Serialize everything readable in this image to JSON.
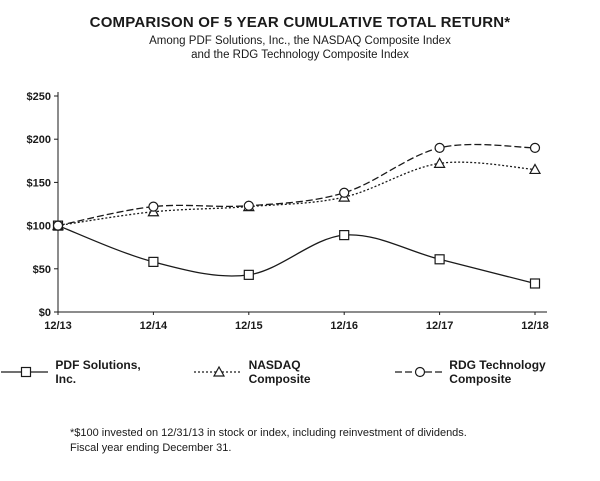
{
  "page": {
    "title": "COMPARISON OF 5 YEAR CUMULATIVE TOTAL RETURN*",
    "subtitle_line1": "Among PDF Solutions, Inc., the NASDAQ Composite Index",
    "subtitle_line2": "and the RDG Technology Composite Index",
    "footnote_line1": "*$100 invested on 12/31/13 in stock or index, including reinvestment of dividends.",
    "footnote_line2": "Fiscal year ending December 31."
  },
  "chart_data": {
    "type": "line",
    "title": "COMPARISON OF 5 YEAR CUMULATIVE TOTAL RETURN*",
    "x": [
      "12/13",
      "12/14",
      "12/15",
      "12/16",
      "12/17",
      "12/18"
    ],
    "series": [
      {
        "name": "PDF Solutions, Inc.",
        "marker": "square",
        "dash": "solid",
        "values": [
          100,
          58,
          43,
          89,
          61,
          33
        ]
      },
      {
        "name": "NASDAQ Composite",
        "marker": "triangle",
        "dash": "dotted",
        "values": [
          100,
          116,
          122,
          133,
          172,
          165
        ]
      },
      {
        "name": "RDG Technology Composite",
        "marker": "circle",
        "dash": "dashed",
        "values": [
          100,
          122,
          123,
          138,
          190,
          190
        ]
      }
    ],
    "ylim": [
      0,
      250
    ],
    "yticks": [
      0,
      50,
      100,
      150,
      200,
      250
    ],
    "ytick_labels": [
      "$0",
      "$50",
      "$100",
      "$150",
      "$200",
      "$250"
    ],
    "xlabel": "",
    "ylabel": "",
    "grid": false,
    "legend_position": "bottom",
    "line_color": "#1a1a1a"
  }
}
